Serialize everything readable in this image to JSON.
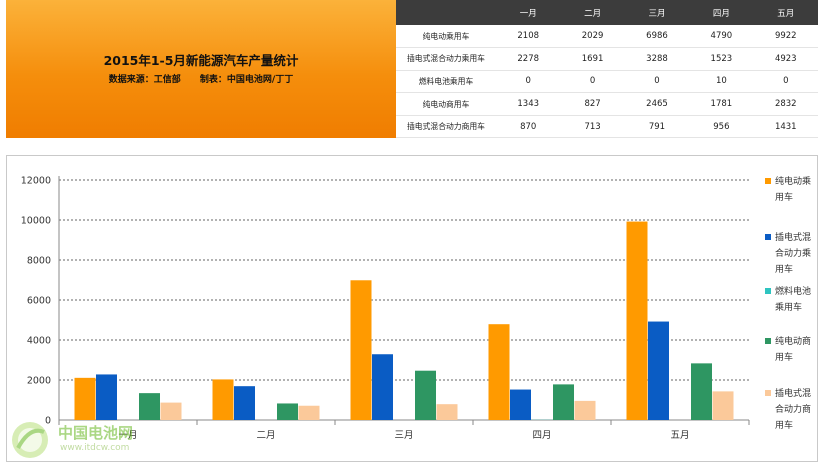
{
  "header": {
    "title": "2015年1-5月新能源汽车产量统计",
    "source": "数据来源：工信部",
    "author": "制表：中国电池网/丁丁"
  },
  "table": {
    "columns": [
      "一月",
      "二月",
      "三月",
      "四月",
      "五月"
    ],
    "rows": [
      {
        "label": "纯电动乘用车",
        "values": [
          "2108",
          "2029",
          "6986",
          "4790",
          "9922"
        ]
      },
      {
        "label": "插电式混合动力乘用车",
        "values": [
          "2278",
          "1691",
          "3288",
          "1523",
          "4923"
        ]
      },
      {
        "label": "燃料电池乘用车",
        "values": [
          "0",
          "0",
          "0",
          "10",
          "0"
        ]
      },
      {
        "label": "纯电动商用车",
        "values": [
          "1343",
          "827",
          "2465",
          "1781",
          "2832"
        ]
      },
      {
        "label": "插电式混合动力商用车",
        "values": [
          "870",
          "713",
          "791",
          "956",
          "1431"
        ]
      }
    ]
  },
  "chart_data": {
    "type": "bar",
    "categories": [
      "一月",
      "二月",
      "三月",
      "四月",
      "五月"
    ],
    "series": [
      {
        "name": "纯电动乘用车",
        "values": [
          2108,
          2029,
          6986,
          4790,
          9922
        ],
        "color": "#ff9a00"
      },
      {
        "name": "插电式混合动力乘用车",
        "values": [
          2278,
          1691,
          3288,
          1523,
          4923
        ],
        "color": "#0a5cc4"
      },
      {
        "name": "燃料电池乘用车",
        "values": [
          0,
          0,
          0,
          10,
          0
        ],
        "color": "#2ec4c0"
      },
      {
        "name": "纯电动商用车",
        "values": [
          1343,
          827,
          2465,
          1781,
          2832
        ],
        "color": "#2e9662"
      },
      {
        "name": "插电式混合动力商用车",
        "values": [
          870,
          713,
          791,
          956,
          1431
        ],
        "color": "#fbc99a"
      }
    ],
    "ylim": [
      0,
      12000
    ],
    "yticks": [
      0,
      2000,
      4000,
      6000,
      8000,
      10000,
      12000
    ],
    "grid": true,
    "legend": "right"
  },
  "legend_lines": [
    [
      "纯电动乘",
      "用车"
    ],
    [
      "插电式混",
      "合动力乘",
      "用车"
    ],
    [
      "燃料电池",
      "乘用车"
    ],
    [
      "纯电动商",
      "用车"
    ],
    [
      "插电式混",
      "合动力商",
      "用车"
    ]
  ],
  "watermark": {
    "name": "中国电池网",
    "url": "www.itdcw.com"
  }
}
